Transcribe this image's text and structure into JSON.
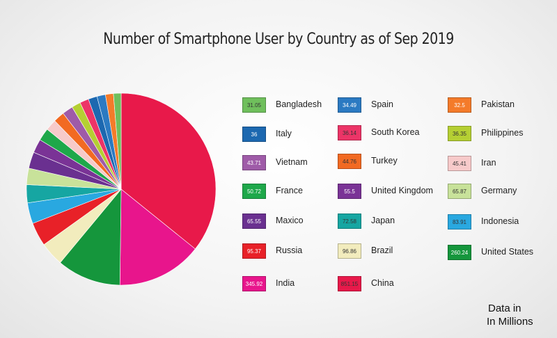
{
  "chart_data": {
    "type": "pie",
    "title": "Number of Smartphone User by Country as of Sep 2019",
    "slices": [
      {
        "label": "China",
        "value": 851.15,
        "color": "#e8194a"
      },
      {
        "label": "India",
        "value": 345.92,
        "color": "#e8158c"
      },
      {
        "label": "United States",
        "value": 260.24,
        "color": "#15963c"
      },
      {
        "label": "Brazil",
        "value": 96.86,
        "color": "#f2ecbd"
      },
      {
        "label": "Russia",
        "value": 95.37,
        "color": "#e82128"
      },
      {
        "label": "Indonesia",
        "value": 83.91,
        "color": "#29a8e0"
      },
      {
        "label": "Japan",
        "value": 72.58,
        "color": "#16a6a2"
      },
      {
        "label": "Germany",
        "value": 65.87,
        "color": "#c8e29a"
      },
      {
        "label": "Maxico",
        "value": 65.55,
        "color": "#6a3090"
      },
      {
        "label": "United Kingdom",
        "value": 55.5,
        "color": "#7a3396"
      },
      {
        "label": "France",
        "value": 50.72,
        "color": "#1ea84a"
      },
      {
        "label": "Iran",
        "value": 45.41,
        "color": "#f7caca"
      },
      {
        "label": "Turkey",
        "value": 44.76,
        "color": "#f26a22"
      },
      {
        "label": "Vietnam",
        "value": 43.71,
        "color": "#9f5ba8"
      },
      {
        "label": "Philippines",
        "value": 36.35,
        "color": "#b5cf33"
      },
      {
        "label": "South Korea",
        "value": 36.14,
        "color": "#ec3467"
      },
      {
        "label": "Italy",
        "value": 36,
        "color": "#1c68b0"
      },
      {
        "label": "Spain",
        "value": 34.49,
        "color": "#2b7ac2"
      },
      {
        "label": "Pakistan",
        "value": 32.5,
        "color": "#f47b2a"
      },
      {
        "label": "Bangladesh",
        "value": 31.05,
        "color": "#6fbf5c"
      }
    ],
    "legend": [
      [
        "31.05",
        "Bangladesh",
        "#6fbf5c",
        "#333"
      ],
      [
        "36",
        "Italy",
        "#1c68b0",
        "#fff"
      ],
      [
        "43.71",
        "Vietnam",
        "#9f5ba8",
        "#fff"
      ],
      [
        "50.72",
        "France",
        "#1ea84a",
        "#fff"
      ],
      [
        "65.55",
        "Maxico",
        "#6a3090",
        "#fff"
      ],
      [
        "95.37",
        "Russia",
        "#e82128",
        "#fff"
      ],
      [
        "345.92",
        "India",
        "#e8158c",
        "#fff"
      ],
      [
        "34.49",
        "Spain",
        "#2b7ac2",
        "#fff"
      ],
      [
        "36.14",
        "South Korea",
        "#ec3467",
        "#333"
      ],
      [
        "44.76",
        "Turkey",
        "#f26a22",
        "#333"
      ],
      [
        "55.5",
        "United Kingdom",
        "#7a3396",
        "#fff"
      ],
      [
        "72.58",
        "Japan",
        "#16a6a2",
        "#333"
      ],
      [
        "96.86",
        "Brazil",
        "#f2ecbd",
        "#333"
      ],
      [
        "851.15",
        "China",
        "#e8194a",
        "#333"
      ],
      [
        "32.5",
        "Pakistan",
        "#f47b2a",
        "#fff"
      ],
      [
        "36.35",
        "Philippines",
        "#b5cf33",
        "#333"
      ],
      [
        "45.41",
        "Iran",
        "#f7caca",
        "#333"
      ],
      [
        "65.87",
        "Germany",
        "#c8e29a",
        "#333"
      ],
      [
        "83.91",
        "Indonesia",
        "#29a8e0",
        "#333"
      ],
      [
        "260.24",
        "United States",
        "#15963c",
        "#fff"
      ]
    ],
    "legend_placement": "right"
  },
  "note": {
    "line1": "Data in",
    "line2": "In Millions"
  }
}
